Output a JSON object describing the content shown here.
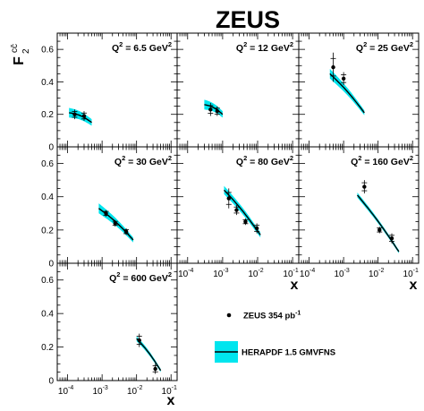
{
  "figure": {
    "title": "ZEUS",
    "ylabel_main": "F",
    "ylabel_sup": "cc̄",
    "ylabel_sub": "2",
    "xlabel": "x"
  },
  "legend": {
    "data_label": "ZEUS 354 pb",
    "data_label_sup": "-1",
    "band_label": "HERAPDF 1.5 GMVFNS"
  },
  "colors": {
    "band": "#00e5ee",
    "curve": "#000000",
    "points": "#000000"
  },
  "chart_data": [
    {
      "type": "scatter",
      "label_prefix": "Q",
      "label_sup": "2",
      "label_value": " = 6.5 GeV",
      "label_unit_sup": "2",
      "xscale": "log",
      "xlim": [
        5e-05,
        0.15
      ],
      "ylim": [
        0,
        0.7
      ],
      "points": [
        {
          "x": 0.00016,
          "y": 0.2,
          "err": 0.03
        },
        {
          "x": 0.0003,
          "y": 0.19,
          "err": 0.03
        }
      ],
      "band": {
        "x": [
          0.00011,
          0.0005
        ],
        "center": [
          0.21,
          0.15
        ],
        "half_width": [
          0.03,
          0.02
        ]
      }
    },
    {
      "type": "scatter",
      "label_prefix": "Q",
      "label_sup": "2",
      "label_value": " = 12 GeV",
      "label_unit_sup": "2",
      "xscale": "log",
      "xlim": [
        5e-05,
        0.15
      ],
      "ylim": [
        0,
        0.7
      ],
      "points": [
        {
          "x": 0.00045,
          "y": 0.23,
          "err": 0.04
        },
        {
          "x": 0.0007,
          "y": 0.22,
          "err": 0.03
        }
      ],
      "band": {
        "x": [
          0.0003,
          0.001
        ],
        "center": [
          0.26,
          0.2
        ],
        "half_width": [
          0.03,
          0.02
        ]
      }
    },
    {
      "type": "scatter",
      "label_prefix": "Q",
      "label_sup": "2",
      "label_value": " = 25 GeV",
      "label_unit_sup": "2",
      "xscale": "log",
      "xlim": [
        5e-05,
        0.15
      ],
      "ylim": [
        0,
        0.7
      ],
      "points": [
        {
          "x": 0.0005,
          "y": 0.49,
          "err": 0.09
        },
        {
          "x": 0.001,
          "y": 0.42,
          "err": 0.04
        }
      ],
      "band": {
        "x": [
          0.0004,
          0.004
        ],
        "center": [
          0.45,
          0.21
        ],
        "half_width": [
          0.03,
          0.015
        ]
      }
    },
    {
      "type": "scatter",
      "label_prefix": "Q",
      "label_sup": "2",
      "label_value": " = 30 GeV",
      "label_unit_sup": "2",
      "xscale": "log",
      "xlim": [
        5e-05,
        0.15
      ],
      "ylim": [
        0,
        0.7
      ],
      "points": [
        {
          "x": 0.0013,
          "y": 0.3,
          "err": 0.02
        },
        {
          "x": 0.0024,
          "y": 0.24,
          "err": 0.02
        },
        {
          "x": 0.005,
          "y": 0.19,
          "err": 0.02
        }
      ],
      "band": {
        "x": [
          0.0008,
          0.008
        ],
        "center": [
          0.33,
          0.14
        ],
        "half_width": [
          0.03,
          0.015
        ]
      }
    },
    {
      "type": "scatter",
      "label_prefix": "Q",
      "label_sup": "2",
      "label_value": " = 80 GeV",
      "label_unit_sup": "2",
      "xscale": "log",
      "xlim": [
        5e-05,
        0.15
      ],
      "ylim": [
        0,
        0.7
      ],
      "points": [
        {
          "x": 0.0015,
          "y": 0.39,
          "err": 0.06
        },
        {
          "x": 0.0025,
          "y": 0.32,
          "err": 0.03
        },
        {
          "x": 0.0045,
          "y": 0.25,
          "err": 0.02
        },
        {
          "x": 0.0095,
          "y": 0.21,
          "err": 0.03
        }
      ],
      "band": {
        "x": [
          0.0011,
          0.012
        ],
        "center": [
          0.44,
          0.17
        ],
        "half_width": [
          0.025,
          0.015
        ]
      }
    },
    {
      "type": "scatter",
      "label_prefix": "Q",
      "label_sup": "2",
      "label_value": " = 160 GeV",
      "label_unit_sup": "2",
      "xscale": "log",
      "xlim": [
        5e-05,
        0.15
      ],
      "ylim": [
        0,
        0.7
      ],
      "points": [
        {
          "x": 0.004,
          "y": 0.46,
          "err": 0.04
        },
        {
          "x": 0.011,
          "y": 0.2,
          "err": 0.02
        },
        {
          "x": 0.025,
          "y": 0.15,
          "err": 0.03
        }
      ],
      "band": {
        "x": [
          0.0025,
          0.04
        ],
        "center": [
          0.41,
          0.07
        ],
        "half_width": [
          0.015,
          0.01
        ]
      }
    },
    {
      "type": "scatter",
      "label_prefix": "Q",
      "label_sup": "2",
      "label_value": " = 600 GeV",
      "label_unit_sup": "2",
      "xscale": "log",
      "xlim": [
        5e-05,
        0.15
      ],
      "ylim": [
        0,
        0.7
      ],
      "points": [
        {
          "x": 0.012,
          "y": 0.24,
          "err": 0.04
        },
        {
          "x": 0.035,
          "y": 0.07,
          "err": 0.03
        }
      ],
      "band": {
        "x": [
          0.01,
          0.05
        ],
        "center": [
          0.25,
          0.06
        ],
        "half_width": [
          0.015,
          0.01
        ]
      }
    }
  ],
  "axis_ticks": {
    "y": [
      "0",
      "0.2",
      "0.4",
      "0.6"
    ],
    "x_base": [
      "10",
      "10",
      "10",
      "10"
    ],
    "x_exp": [
      "-4",
      "-3",
      "-2",
      "-1"
    ]
  }
}
